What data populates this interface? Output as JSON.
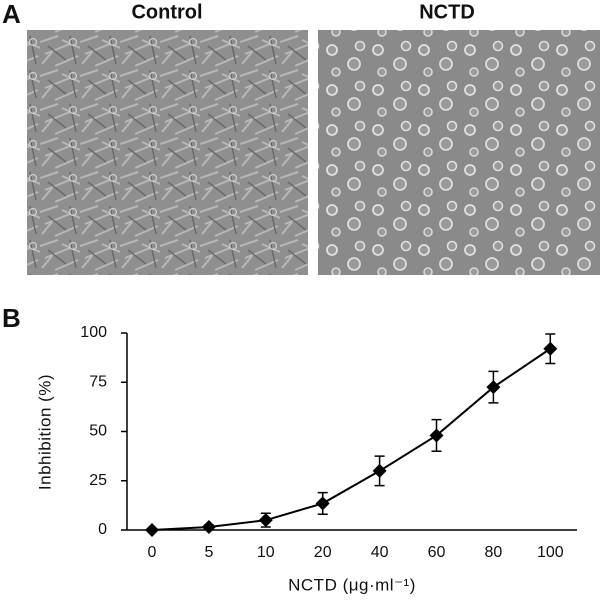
{
  "panel_a": {
    "label": "A",
    "images": [
      "Control",
      "NCTD"
    ]
  },
  "chart_data": {
    "type": "line",
    "panel_label": "B",
    "x_label": "NCTD (μg·ml⁻¹)",
    "y_label": "Inbhibition (%)",
    "categories": [
      "0",
      "5",
      "10",
      "20",
      "40",
      "60",
      "80",
      "100"
    ],
    "values": [
      0,
      1.5,
      5,
      13.5,
      30,
      48,
      72.5,
      92
    ],
    "errors": [
      0,
      1,
      3.5,
      5.5,
      7.5,
      8,
      8,
      7.5
    ],
    "color": "#000000",
    "ylim": [
      0,
      100
    ],
    "yticks": [
      0,
      25,
      50,
      75,
      100
    ]
  }
}
